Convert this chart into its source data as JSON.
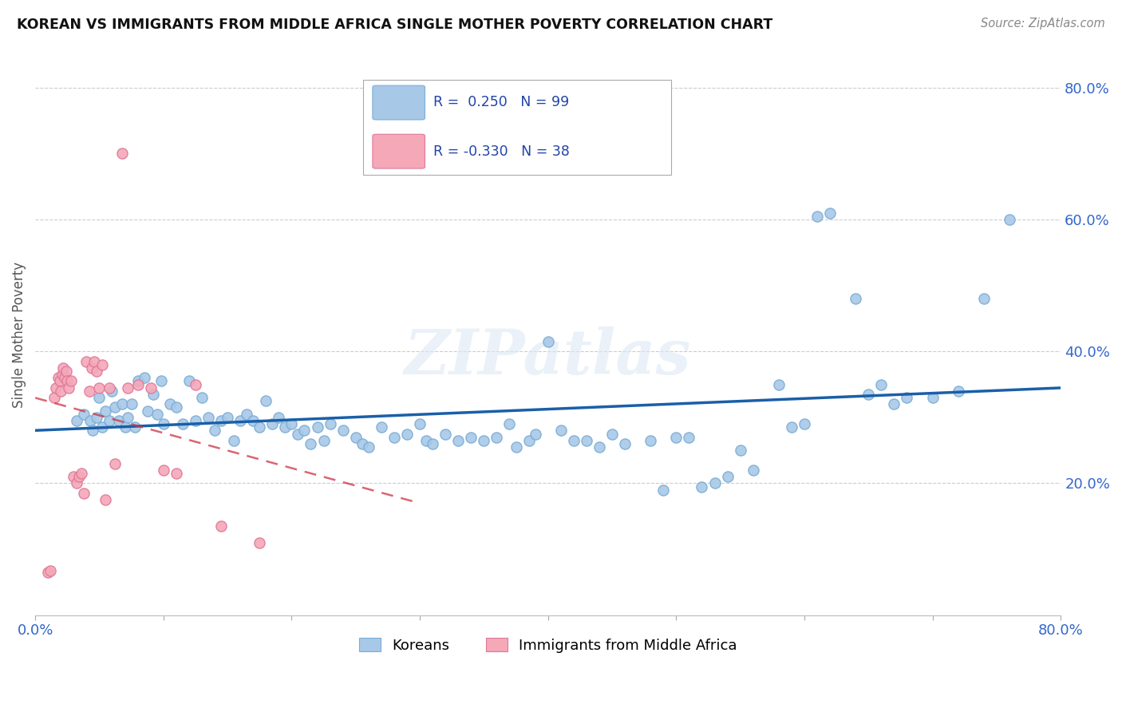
{
  "title": "KOREAN VS IMMIGRANTS FROM MIDDLE AFRICA SINGLE MOTHER POVERTY CORRELATION CHART",
  "source": "Source: ZipAtlas.com",
  "ylabel": "Single Mother Poverty",
  "xlim": [
    0.0,
    0.8
  ],
  "ylim": [
    0.0,
    0.85
  ],
  "korean_color": "#a8c8e8",
  "korean_edge_color": "#7aadd4",
  "immigrant_color": "#f4a8b8",
  "immigrant_edge_color": "#e07898",
  "trendline_korean_color": "#1a5fa8",
  "trendline_immigrant_color": "#cc3344",
  "legend_r_korean": "0.250",
  "legend_n_korean": "99",
  "legend_r_immigrant": "-0.330",
  "legend_n_immigrant": "38",
  "legend_label_korean": "Koreans",
  "legend_label_immigrant": "Immigrants from Middle Africa",
  "watermark": "ZIPatlas",
  "korean_x": [
    0.032,
    0.038,
    0.043,
    0.045,
    0.048,
    0.05,
    0.052,
    0.055,
    0.058,
    0.06,
    0.062,
    0.065,
    0.068,
    0.07,
    0.072,
    0.075,
    0.078,
    0.08,
    0.085,
    0.088,
    0.092,
    0.095,
    0.098,
    0.1,
    0.105,
    0.11,
    0.115,
    0.12,
    0.125,
    0.13,
    0.135,
    0.14,
    0.145,
    0.15,
    0.155,
    0.16,
    0.165,
    0.17,
    0.175,
    0.18,
    0.185,
    0.19,
    0.195,
    0.2,
    0.205,
    0.21,
    0.215,
    0.22,
    0.225,
    0.23,
    0.24,
    0.25,
    0.255,
    0.26,
    0.27,
    0.28,
    0.29,
    0.3,
    0.305,
    0.31,
    0.32,
    0.33,
    0.34,
    0.35,
    0.36,
    0.37,
    0.375,
    0.385,
    0.39,
    0.4,
    0.41,
    0.42,
    0.43,
    0.44,
    0.45,
    0.46,
    0.48,
    0.49,
    0.5,
    0.51,
    0.52,
    0.53,
    0.54,
    0.55,
    0.56,
    0.58,
    0.59,
    0.6,
    0.61,
    0.62,
    0.64,
    0.65,
    0.66,
    0.67,
    0.68,
    0.7,
    0.72,
    0.74,
    0.76
  ],
  "korean_y": [
    0.295,
    0.305,
    0.295,
    0.28,
    0.3,
    0.33,
    0.285,
    0.31,
    0.295,
    0.34,
    0.315,
    0.295,
    0.32,
    0.285,
    0.3,
    0.32,
    0.285,
    0.355,
    0.36,
    0.31,
    0.335,
    0.305,
    0.355,
    0.29,
    0.32,
    0.315,
    0.29,
    0.355,
    0.295,
    0.33,
    0.3,
    0.28,
    0.295,
    0.3,
    0.265,
    0.295,
    0.305,
    0.295,
    0.285,
    0.325,
    0.29,
    0.3,
    0.285,
    0.29,
    0.275,
    0.28,
    0.26,
    0.285,
    0.265,
    0.29,
    0.28,
    0.27,
    0.26,
    0.255,
    0.285,
    0.27,
    0.275,
    0.29,
    0.265,
    0.26,
    0.275,
    0.265,
    0.27,
    0.265,
    0.27,
    0.29,
    0.255,
    0.265,
    0.275,
    0.415,
    0.28,
    0.265,
    0.265,
    0.255,
    0.275,
    0.26,
    0.265,
    0.19,
    0.27,
    0.27,
    0.195,
    0.2,
    0.21,
    0.25,
    0.22,
    0.35,
    0.285,
    0.29,
    0.605,
    0.61,
    0.48,
    0.335,
    0.35,
    0.32,
    0.33,
    0.33,
    0.34,
    0.48,
    0.6
  ],
  "immigrant_x": [
    0.01,
    0.012,
    0.015,
    0.016,
    0.018,
    0.019,
    0.02,
    0.021,
    0.022,
    0.023,
    0.024,
    0.025,
    0.026,
    0.028,
    0.03,
    0.032,
    0.034,
    0.036,
    0.038,
    0.04,
    0.042,
    0.044,
    0.046,
    0.048,
    0.05,
    0.052,
    0.055,
    0.058,
    0.062,
    0.068,
    0.072,
    0.08,
    0.09,
    0.1,
    0.11,
    0.125,
    0.145,
    0.175
  ],
  "immigrant_y": [
    0.065,
    0.068,
    0.33,
    0.345,
    0.36,
    0.355,
    0.34,
    0.365,
    0.375,
    0.36,
    0.37,
    0.355,
    0.345,
    0.355,
    0.21,
    0.2,
    0.21,
    0.215,
    0.185,
    0.385,
    0.34,
    0.375,
    0.385,
    0.37,
    0.345,
    0.38,
    0.175,
    0.345,
    0.23,
    0.7,
    0.345,
    0.35,
    0.345,
    0.22,
    0.215,
    0.35,
    0.135,
    0.11
  ]
}
